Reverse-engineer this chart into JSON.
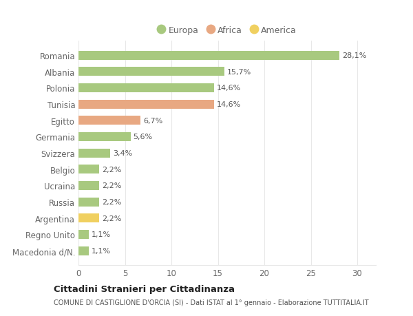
{
  "countries": [
    "Macedonia d/N.",
    "Regno Unito",
    "Argentina",
    "Russia",
    "Ucraina",
    "Belgio",
    "Svizzera",
    "Germania",
    "Egitto",
    "Tunisia",
    "Polonia",
    "Albania",
    "Romania"
  ],
  "values": [
    1.1,
    1.1,
    2.2,
    2.2,
    2.2,
    2.2,
    3.4,
    5.6,
    6.7,
    14.6,
    14.6,
    15.7,
    28.1
  ],
  "labels": [
    "1,1%",
    "1,1%",
    "2,2%",
    "2,2%",
    "2,2%",
    "2,2%",
    "3,4%",
    "5,6%",
    "6,7%",
    "14,6%",
    "14,6%",
    "15,7%",
    "28,1%"
  ],
  "continents": [
    "Europa",
    "Europa",
    "America",
    "Europa",
    "Europa",
    "Europa",
    "Europa",
    "Europa",
    "Africa",
    "Africa",
    "Europa",
    "Europa",
    "Europa"
  ],
  "colors": {
    "Europa": "#a8c97f",
    "Africa": "#e8a882",
    "America": "#f0d060"
  },
  "legend_items": [
    {
      "label": "Europa",
      "color": "#a8c97f"
    },
    {
      "label": "Africa",
      "color": "#e8a882"
    },
    {
      "label": "America",
      "color": "#f0d060"
    }
  ],
  "title": "Cittadini Stranieri per Cittadinanza",
  "subtitle": "COMUNE DI CASTIGLIONE D'ORCIA (SI) - Dati ISTAT al 1° gennaio - Elaborazione TUTTITALIA.IT",
  "xlim": [
    0,
    32
  ],
  "xticks": [
    0,
    5,
    10,
    15,
    20,
    25,
    30
  ],
  "background_color": "#ffffff",
  "grid_color": "#e8e8e8",
  "text_color": "#666666",
  "label_color": "#555555",
  "bar_height": 0.55
}
